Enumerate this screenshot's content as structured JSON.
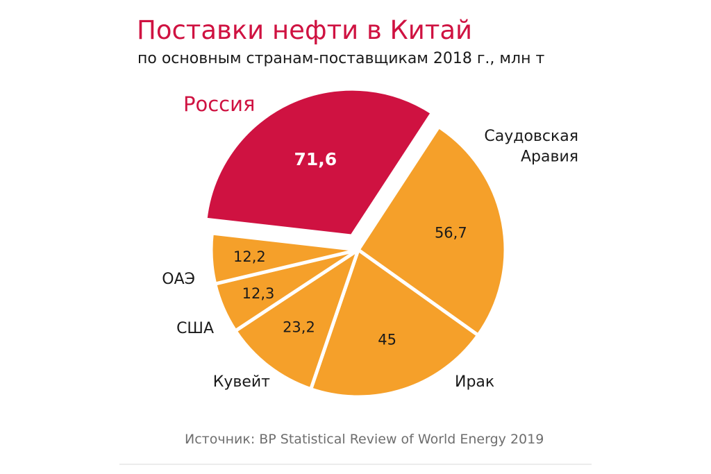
{
  "chart_data": {
    "type": "pie",
    "title": "Поставки нефти в Китай",
    "subtitle": "по основным странам-поставщикам 2018 г., млн т",
    "source": "Источник: BP Statistical Review of World Energy 2019",
    "slices": [
      {
        "label": "Россия",
        "value": 71.6,
        "value_label": "71,6",
        "color": "#cf1241"
      },
      {
        "label": "Саудовская Аравия",
        "value": 56.7,
        "value_label": "56,7",
        "color": "#f5a02a"
      },
      {
        "label": "Ирак",
        "value": 45,
        "value_label": "45",
        "color": "#f5a02a"
      },
      {
        "label": "Кувейт",
        "value": 23.2,
        "value_label": "23,2",
        "color": "#f5a02a"
      },
      {
        "label": "США",
        "value": 12.3,
        "value_label": "12,3",
        "color": "#f5a02a"
      },
      {
        "label": "ОАЭ",
        "value": 12.2,
        "value_label": "12,2",
        "color": "#f5a02a"
      }
    ]
  }
}
